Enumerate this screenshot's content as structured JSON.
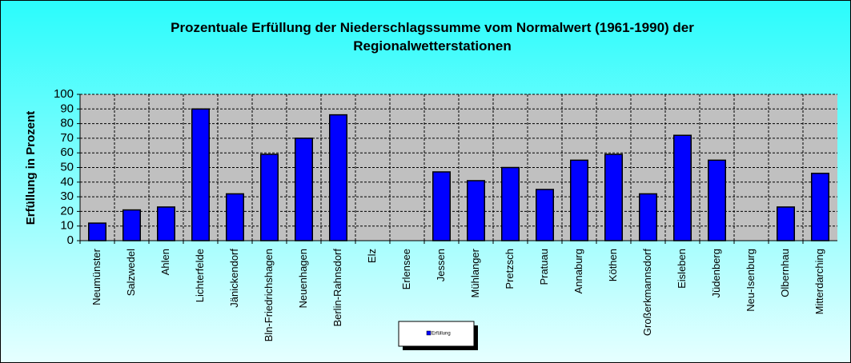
{
  "chart_data": {
    "type": "bar",
    "title": [
      "Prozentuale Erfüllung der Niederschlagssumme vom Normalwert (1961-1990) der",
      "Regionalwetterstationen"
    ],
    "y_label": "Erfüllung in Prozent",
    "categories": [
      "Neumünster",
      "Salzwedel",
      "Ahlen",
      "Lichterfelde",
      "Jänickendorf",
      "Bln-Friedrichshagen",
      "Neuenhagen",
      "Berlin-Rahnsdorf",
      "Elz",
      "Erlensee",
      "Jessen",
      "Mühlanger",
      "Pretzsch",
      "Pratuau",
      "Annaburg",
      "Köthen",
      "Großerkmannsdorf",
      "Eisleben",
      "Jüdenberg",
      "Neu-Isenburg",
      "Olbernhau",
      "Mitterdarching"
    ],
    "series": [
      {
        "name": "Erfüllung",
        "color": "#0000ff",
        "values": [
          12,
          21,
          23,
          90,
          32,
          59,
          70,
          86,
          null,
          null,
          47,
          41,
          50,
          35,
          55,
          59,
          32,
          72,
          55,
          null,
          23,
          46
        ]
      }
    ],
    "ylim": [
      0,
      100
    ],
    "yticks": [
      0,
      10,
      20,
      30,
      40,
      50,
      60,
      70,
      80,
      90,
      100
    ],
    "grid": true
  }
}
